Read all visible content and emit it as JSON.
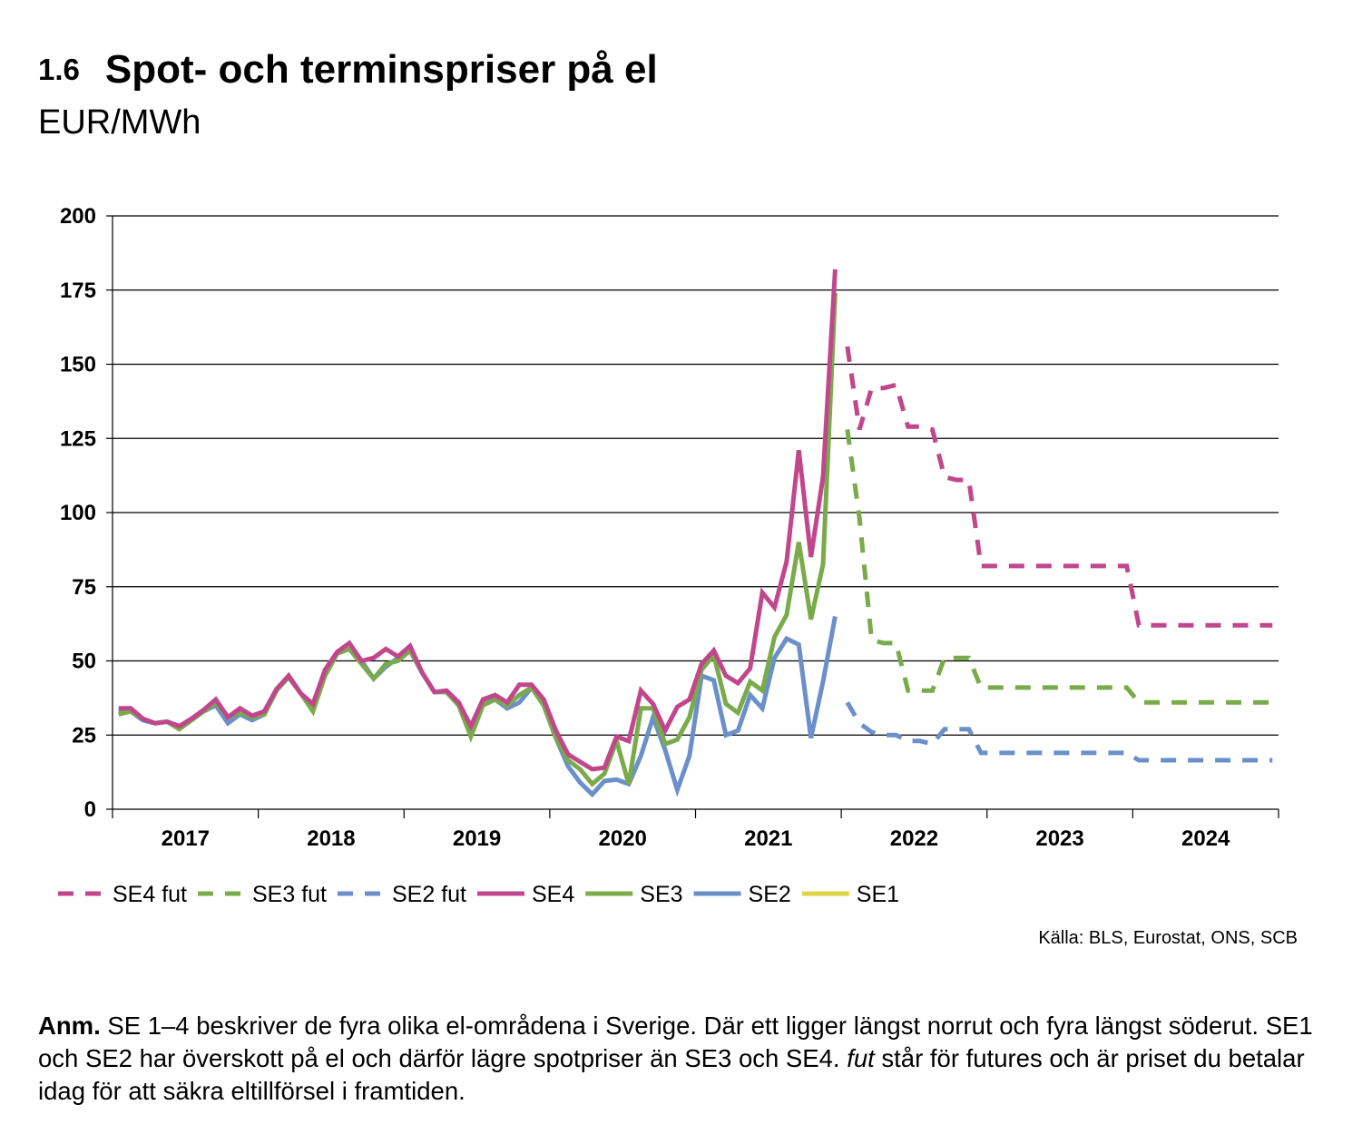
{
  "header": {
    "figure_number": "1.6",
    "title": "Spot- och terminspriser på el",
    "unit": "EUR/MWh"
  },
  "chart_data": {
    "type": "line",
    "ylim": [
      0,
      200
    ],
    "yticks": [
      0,
      25,
      50,
      75,
      100,
      125,
      150,
      175,
      200
    ],
    "x_domain": [
      "2017-01",
      "2024-12"
    ],
    "year_labels": [
      "2017",
      "2018",
      "2019",
      "2020",
      "2021",
      "2022",
      "2023",
      "2024"
    ],
    "grid": "horizontal",
    "legend_position": "bottom",
    "series": [
      {
        "name": "SE4 fut",
        "key": "se4fut",
        "color": "#c0478c",
        "style": "dashed",
        "points": [
          [
            "2022-01",
            156
          ],
          [
            "2022-02",
            128
          ],
          [
            "2022-03",
            142
          ],
          [
            "2022-04",
            142
          ],
          [
            "2022-05",
            143
          ],
          [
            "2022-06",
            129
          ],
          [
            "2022-07",
            129
          ],
          [
            "2022-08",
            128
          ],
          [
            "2022-09",
            112
          ],
          [
            "2022-10",
            111
          ],
          [
            "2022-11",
            111
          ],
          [
            "2022-12",
            82
          ],
          [
            "2023-01",
            82
          ],
          [
            "2023-12",
            82
          ],
          [
            "2024-01",
            62
          ],
          [
            "2024-12",
            62
          ]
        ]
      },
      {
        "name": "SE3 fut",
        "key": "se3fut",
        "color": "#7aab4a",
        "style": "dashed",
        "points": [
          [
            "2022-01",
            128
          ],
          [
            "2022-02",
            98
          ],
          [
            "2022-03",
            57
          ],
          [
            "2022-04",
            56
          ],
          [
            "2022-05",
            56
          ],
          [
            "2022-06",
            40
          ],
          [
            "2022-07",
            40
          ],
          [
            "2022-08",
            40
          ],
          [
            "2022-09",
            51
          ],
          [
            "2022-10",
            51
          ],
          [
            "2022-11",
            51
          ],
          [
            "2022-12",
            41
          ],
          [
            "2023-01",
            41
          ],
          [
            "2023-12",
            41
          ],
          [
            "2024-01",
            36
          ],
          [
            "2024-12",
            36
          ]
        ]
      },
      {
        "name": "SE2 fut",
        "key": "se2fut",
        "color": "#6b90c9",
        "style": "dashed",
        "points": [
          [
            "2022-01",
            36
          ],
          [
            "2022-02",
            29
          ],
          [
            "2022-03",
            26
          ],
          [
            "2022-04",
            25
          ],
          [
            "2022-05",
            25
          ],
          [
            "2022-06",
            23
          ],
          [
            "2022-07",
            23
          ],
          [
            "2022-08",
            22
          ],
          [
            "2022-09",
            27
          ],
          [
            "2022-10",
            27
          ],
          [
            "2022-11",
            27
          ],
          [
            "2022-12",
            19
          ],
          [
            "2023-01",
            19
          ],
          [
            "2023-12",
            19
          ],
          [
            "2024-01",
            16.5
          ],
          [
            "2024-12",
            16.5
          ]
        ]
      },
      {
        "name": "SE1",
        "key": "se1",
        "color": "#dcd54a",
        "style": "solid",
        "points": []
      },
      {
        "name": "SE2",
        "key": "se2",
        "color": "#6b90c9",
        "style": "solid",
        "points": [
          [
            "2017-01",
            33
          ],
          [
            "2017-02",
            33
          ],
          [
            "2017-03",
            30
          ],
          [
            "2017-04",
            29
          ],
          [
            "2017-05",
            29.5
          ],
          [
            "2017-06",
            27.5
          ],
          [
            "2017-07",
            30
          ],
          [
            "2017-08",
            33
          ],
          [
            "2017-09",
            35
          ],
          [
            "2017-10",
            29
          ],
          [
            "2017-11",
            32
          ],
          [
            "2017-12",
            30
          ],
          [
            "2018-01",
            32
          ],
          [
            "2018-02",
            40
          ],
          [
            "2018-03",
            45
          ],
          [
            "2018-04",
            39
          ],
          [
            "2018-05",
            34
          ],
          [
            "2018-06",
            46
          ],
          [
            "2018-07",
            52.5
          ],
          [
            "2018-08",
            54
          ],
          [
            "2018-09",
            50
          ],
          [
            "2018-10",
            44
          ],
          [
            "2018-11",
            48
          ],
          [
            "2018-12",
            51
          ],
          [
            "2019-01",
            53.5
          ],
          [
            "2019-02",
            46
          ],
          [
            "2019-03",
            39.5
          ],
          [
            "2019-04",
            39.5
          ],
          [
            "2019-05",
            35
          ],
          [
            "2019-06",
            26
          ],
          [
            "2019-07",
            35.5
          ],
          [
            "2019-08",
            37
          ],
          [
            "2019-09",
            34
          ],
          [
            "2019-10",
            36
          ],
          [
            "2019-11",
            41
          ],
          [
            "2019-12",
            35
          ],
          [
            "2020-01",
            24
          ],
          [
            "2020-02",
            14.5
          ],
          [
            "2020-03",
            9
          ],
          [
            "2020-04",
            5
          ],
          [
            "2020-05",
            9.5
          ],
          [
            "2020-06",
            10
          ],
          [
            "2020-07",
            8.5
          ],
          [
            "2020-08",
            18
          ],
          [
            "2020-09",
            31
          ],
          [
            "2020-10",
            20
          ],
          [
            "2020-11",
            6.5
          ],
          [
            "2020-12",
            18
          ],
          [
            "2021-01",
            45
          ],
          [
            "2021-02",
            43.5
          ],
          [
            "2021-03",
            25
          ],
          [
            "2021-04",
            26.5
          ],
          [
            "2021-05",
            38.5
          ],
          [
            "2021-06",
            34
          ],
          [
            "2021-07",
            51
          ],
          [
            "2021-08",
            57.5
          ],
          [
            "2021-09",
            55.5
          ],
          [
            "2021-10",
            24
          ],
          [
            "2021-11",
            43
          ],
          [
            "2021-12",
            65
          ]
        ]
      },
      {
        "name": "SE3",
        "key": "se3",
        "color": "#7aab4a",
        "style": "solid",
        "points": [
          [
            "2017-01",
            32
          ],
          [
            "2017-02",
            33
          ],
          [
            "2017-03",
            30.5
          ],
          [
            "2017-04",
            29
          ],
          [
            "2017-05",
            29.5
          ],
          [
            "2017-06",
            27
          ],
          [
            "2017-07",
            30
          ],
          [
            "2017-08",
            33
          ],
          [
            "2017-09",
            36
          ],
          [
            "2017-10",
            31
          ],
          [
            "2017-11",
            32.5
          ],
          [
            "2017-12",
            31
          ],
          [
            "2018-01",
            32
          ],
          [
            "2018-02",
            40
          ],
          [
            "2018-03",
            44.5
          ],
          [
            "2018-04",
            39
          ],
          [
            "2018-05",
            33
          ],
          [
            "2018-06",
            45
          ],
          [
            "2018-07",
            52.5
          ],
          [
            "2018-08",
            54
          ],
          [
            "2018-09",
            49
          ],
          [
            "2018-10",
            44
          ],
          [
            "2018-11",
            49
          ],
          [
            "2018-12",
            50
          ],
          [
            "2019-01",
            53.5
          ],
          [
            "2019-02",
            46
          ],
          [
            "2019-03",
            39.5
          ],
          [
            "2019-04",
            39.5
          ],
          [
            "2019-05",
            35
          ],
          [
            "2019-06",
            24.5
          ],
          [
            "2019-07",
            35
          ],
          [
            "2019-08",
            37
          ],
          [
            "2019-09",
            35
          ],
          [
            "2019-10",
            38.5
          ],
          [
            "2019-11",
            41
          ],
          [
            "2019-12",
            35
          ],
          [
            "2020-01",
            24
          ],
          [
            "2020-02",
            16.5
          ],
          [
            "2020-03",
            13.5
          ],
          [
            "2020-04",
            8.5
          ],
          [
            "2020-05",
            12
          ],
          [
            "2020-06",
            23
          ],
          [
            "2020-07",
            8.5
          ],
          [
            "2020-08",
            34
          ],
          [
            "2020-09",
            34
          ],
          [
            "2020-10",
            22
          ],
          [
            "2020-11",
            23.5
          ],
          [
            "2020-12",
            31
          ],
          [
            "2021-01",
            47
          ],
          [
            "2021-02",
            52
          ],
          [
            "2021-03",
            35.5
          ],
          [
            "2021-04",
            32.5
          ],
          [
            "2021-05",
            43
          ],
          [
            "2021-06",
            40
          ],
          [
            "2021-07",
            58
          ],
          [
            "2021-08",
            65.5
          ],
          [
            "2021-09",
            90
          ],
          [
            "2021-10",
            64
          ],
          [
            "2021-11",
            82.5
          ],
          [
            "2021-12",
            174
          ]
        ]
      },
      {
        "name": "SE4",
        "key": "se4",
        "color": "#c0478c",
        "style": "solid",
        "points": [
          [
            "2017-01",
            34
          ],
          [
            "2017-02",
            34
          ],
          [
            "2017-03",
            30.5
          ],
          [
            "2017-04",
            29
          ],
          [
            "2017-05",
            29.5
          ],
          [
            "2017-06",
            28
          ],
          [
            "2017-07",
            30.5
          ],
          [
            "2017-08",
            33.5
          ],
          [
            "2017-09",
            37
          ],
          [
            "2017-10",
            31
          ],
          [
            "2017-11",
            34
          ],
          [
            "2017-12",
            31.5
          ],
          [
            "2018-01",
            33
          ],
          [
            "2018-02",
            40.5
          ],
          [
            "2018-03",
            45
          ],
          [
            "2018-04",
            39
          ],
          [
            "2018-05",
            35.5
          ],
          [
            "2018-06",
            47
          ],
          [
            "2018-07",
            53
          ],
          [
            "2018-08",
            56
          ],
          [
            "2018-09",
            50
          ],
          [
            "2018-10",
            51
          ],
          [
            "2018-11",
            54
          ],
          [
            "2018-12",
            51.5
          ],
          [
            "2019-01",
            55
          ],
          [
            "2019-02",
            46
          ],
          [
            "2019-03",
            39.5
          ],
          [
            "2019-04",
            40
          ],
          [
            "2019-05",
            36
          ],
          [
            "2019-06",
            28
          ],
          [
            "2019-07",
            37
          ],
          [
            "2019-08",
            38.5
          ],
          [
            "2019-09",
            36
          ],
          [
            "2019-10",
            42
          ],
          [
            "2019-11",
            42
          ],
          [
            "2019-12",
            37
          ],
          [
            "2020-01",
            26.5
          ],
          [
            "2020-02",
            18.5
          ],
          [
            "2020-03",
            16
          ],
          [
            "2020-04",
            13.5
          ],
          [
            "2020-05",
            14
          ],
          [
            "2020-06",
            24.5
          ],
          [
            "2020-07",
            23
          ],
          [
            "2020-08",
            40
          ],
          [
            "2020-09",
            35.5
          ],
          [
            "2020-10",
            26.5
          ],
          [
            "2020-11",
            34.5
          ],
          [
            "2020-12",
            37
          ],
          [
            "2021-01",
            49
          ],
          [
            "2021-02",
            53.5
          ],
          [
            "2021-03",
            45
          ],
          [
            "2021-04",
            42.5
          ],
          [
            "2021-05",
            47.5
          ],
          [
            "2021-06",
            73
          ],
          [
            "2021-07",
            68
          ],
          [
            "2021-08",
            83.5
          ],
          [
            "2021-09",
            121
          ],
          [
            "2021-10",
            85
          ],
          [
            "2021-11",
            112
          ],
          [
            "2021-12",
            182
          ]
        ]
      }
    ],
    "legend_order": [
      "se4fut",
      "se3fut",
      "se2fut",
      "se4",
      "se3",
      "se2",
      "se1"
    ],
    "source": "Källa: BLS, Eurostat, ONS, SCB"
  },
  "note": {
    "prefix": "Anm.",
    "text_1": " SE 1–4 beskriver de fyra olika el-områdena i Sverige. Där ett ligger längst norrut och fyra längst söderut. SE1 och SE2 har överskott på el och därför lägre spotpriser än SE3 och SE4. ",
    "fut_word": "fut",
    "text_2": " står för futures och är priset du betalar idag för att säkra eltillförsel i framtiden."
  }
}
